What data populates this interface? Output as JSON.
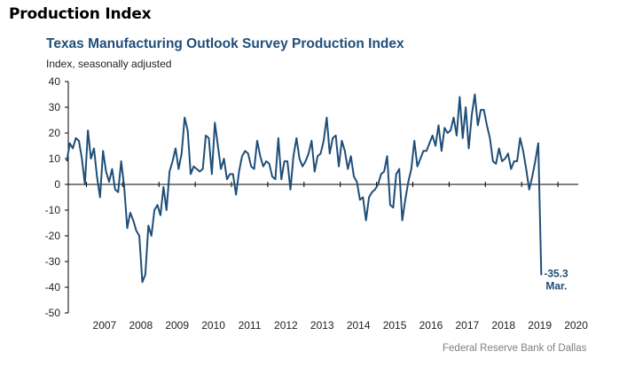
{
  "page_heading": "Production Index",
  "credit": "Federal Reserve Bank of Dallas",
  "chart_data": {
    "type": "line",
    "title": "Texas Manufacturing Outlook Survey Production Index",
    "subtitle": "Index, seasonally adjusted",
    "xlabel": "",
    "ylabel": "",
    "ylim": [
      -50,
      40
    ],
    "y_ticks": [
      40,
      30,
      20,
      10,
      0,
      -10,
      -20,
      -30,
      -40,
      -50
    ],
    "x_tick_labels": [
      "2007",
      "2008",
      "2009",
      "2010",
      "2011",
      "2012",
      "2013",
      "2014",
      "2015",
      "2016",
      "2017",
      "2018",
      "2019",
      "2020"
    ],
    "grid": false,
    "line_color": "#1f4e79",
    "callout": {
      "value": "-35.3",
      "label": "Mar."
    },
    "series": [
      {
        "x_start": "2006-06",
        "frequency": "monthly",
        "values": [
          9,
          16,
          14,
          18,
          17,
          10,
          0,
          21,
          10,
          14,
          3,
          -5,
          13,
          5,
          1,
          6,
          -2,
          -3,
          9,
          -1,
          -17,
          -11,
          -14,
          -18,
          -20,
          -38,
          -35,
          -16,
          -20,
          -10,
          -8,
          -12,
          -1,
          -10,
          5,
          9,
          14,
          6,
          12,
          26,
          21,
          4,
          7,
          6,
          5,
          6,
          19,
          18,
          4,
          24,
          15,
          6,
          10,
          2,
          4,
          4,
          -4,
          5,
          11,
          13,
          12,
          7,
          6,
          17,
          11,
          7,
          9,
          8,
          3,
          2,
          18,
          2,
          9,
          9,
          -2,
          11,
          18,
          10,
          7,
          9,
          12,
          17,
          5,
          11,
          12,
          17,
          26,
          12,
          18,
          19,
          7,
          17,
          13,
          6,
          11,
          3,
          1,
          -6,
          -5,
          -14,
          -5,
          -3,
          -2,
          0,
          4,
          5,
          11,
          -8,
          -9,
          4,
          6,
          -14,
          -6,
          1,
          6,
          17,
          7,
          10,
          13,
          13,
          16,
          19,
          15,
          23,
          13,
          22,
          20,
          21,
          26,
          19,
          34,
          18,
          30,
          14,
          27,
          35,
          23,
          29,
          29,
          23,
          18,
          9,
          8,
          14,
          9,
          10,
          12,
          6,
          9,
          9,
          18,
          13,
          6,
          -2,
          3,
          9,
          16,
          -35.3
        ]
      }
    ]
  }
}
